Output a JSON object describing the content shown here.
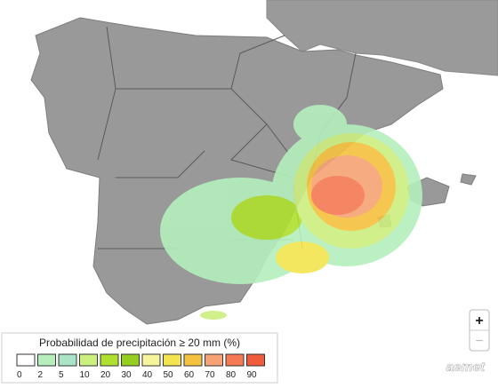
{
  "legend": {
    "title": "Probabilidad de precipitación ≥ 20 mm (%)",
    "labels": [
      "0",
      "2",
      "5",
      "10",
      "20",
      "30",
      "40",
      "50",
      "60",
      "70",
      "80",
      "90"
    ],
    "colors": [
      "#ffffff",
      "#b4efbd",
      "#a9e4c6",
      "#cdef80",
      "#b0e02e",
      "#94cf1f",
      "#f6f59c",
      "#f2e54f",
      "#f5c23f",
      "#f6a274",
      "#f47a53",
      "#ef5b3b"
    ]
  },
  "controls": {
    "zoom_in": "+",
    "zoom_out": "−"
  },
  "logo": "aemet"
}
